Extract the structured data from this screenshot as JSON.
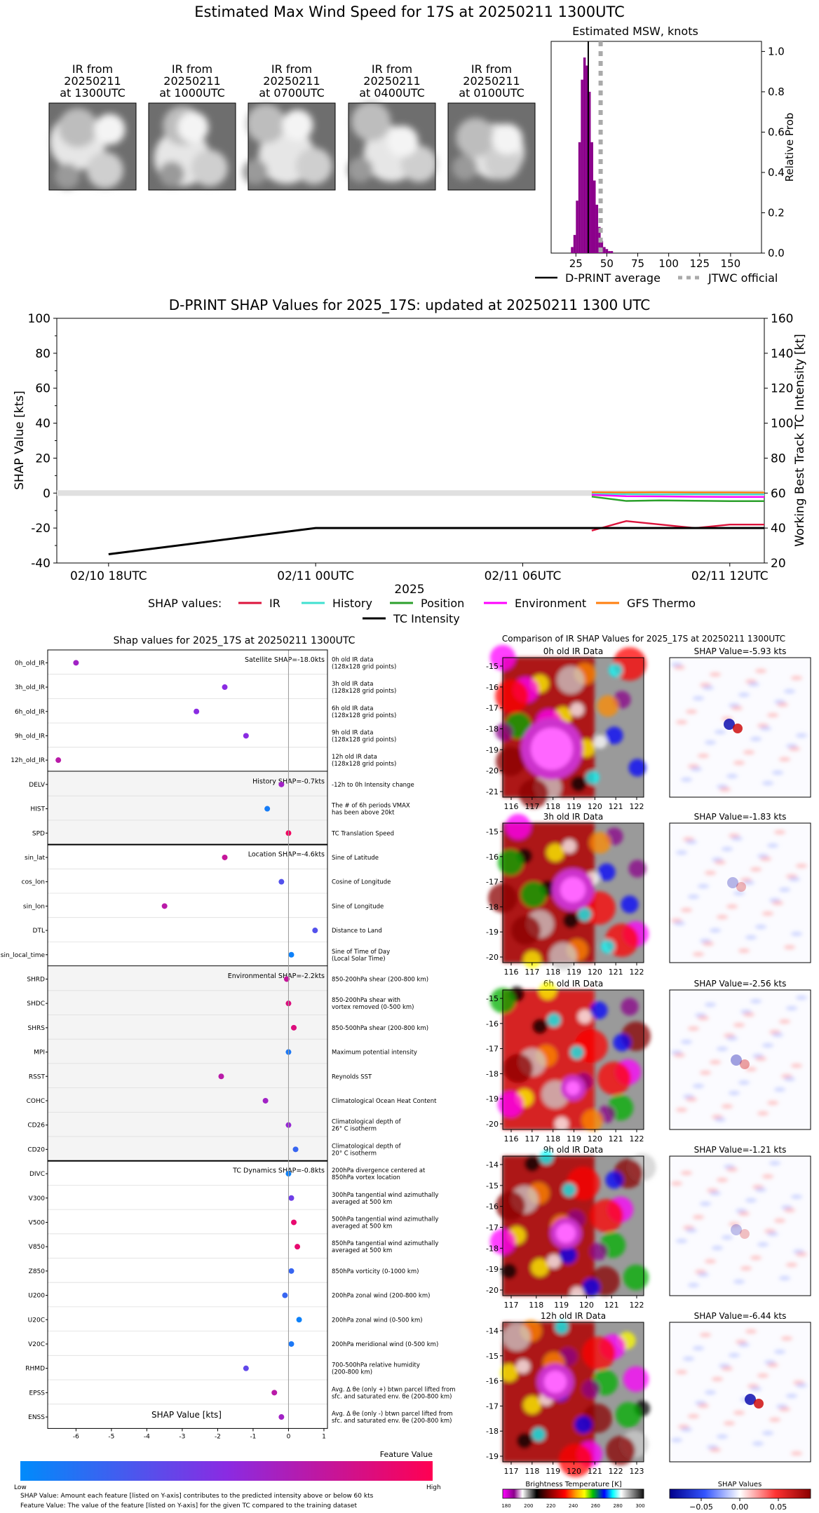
{
  "figure_title": "Estimated Max Wind Speed for 17S at 20250211 1300UTC",
  "ir_thumbs": [
    {
      "l1": "IR from",
      "l2": "20250211",
      "l3": "at 1300UTC"
    },
    {
      "l1": "IR from",
      "l2": "20250211",
      "l3": "at 1000UTC"
    },
    {
      "l1": "IR from",
      "l2": "20250211",
      "l3": "at 0700UTC"
    },
    {
      "l1": "IR from",
      "l2": "20250211",
      "l3": "at 0400UTC"
    },
    {
      "l1": "IR from",
      "l2": "20250211",
      "l3": "at 0100UTC"
    }
  ],
  "colors": {
    "purple": "#8b008b",
    "crimson": "#dc143c",
    "cyan": "#40e0d0",
    "green": "#2ca02c",
    "magenta": "#ff00ff",
    "orange": "#ff7f0e",
    "grey": "#bbbbbb"
  },
  "chart_data": [
    {
      "id": "msw_hist",
      "type": "bar",
      "title": "Estimated MSW, knots",
      "ylabel": "Relative Prob",
      "xlim": [
        5,
        175
      ],
      "ylim": [
        0,
        1.05
      ],
      "xticks": [
        25,
        50,
        75,
        100,
        125,
        150
      ],
      "yticks": [
        0.0,
        0.2,
        0.4,
        0.6,
        0.8,
        1.0
      ],
      "bins": [
        [
          22,
          0.03
        ],
        [
          24,
          0.09
        ],
        [
          26,
          0.26
        ],
        [
          28,
          0.55
        ],
        [
          30,
          0.86
        ],
        [
          32,
          0.97
        ],
        [
          34,
          0.93
        ],
        [
          36,
          0.8
        ],
        [
          38,
          0.55
        ],
        [
          40,
          0.36
        ],
        [
          42,
          0.24
        ],
        [
          44,
          0.13
        ],
        [
          46,
          0.06
        ],
        [
          48,
          0.03
        ],
        [
          50,
          0.02
        ],
        [
          52,
          0.01
        ],
        [
          54,
          0.01
        ]
      ],
      "bin_width": 2,
      "dprint_average": 35,
      "jtwc_official": 45,
      "legend": [
        "D-PRINT average",
        "JTWC official"
      ]
    },
    {
      "id": "shap_time",
      "type": "line",
      "title": "D-PRINT SHAP Values for 2025_17S: updated at 20250211 1300 UTC",
      "ylabel": "SHAP Value [kts]",
      "y2label": "Working Best Track TC Intensity [kt]",
      "xlabel": "2025",
      "ylim": [
        -40,
        100
      ],
      "y2lim": [
        20,
        160
      ],
      "yticks": [
        -40,
        -20,
        0,
        20,
        40,
        60,
        80,
        100
      ],
      "y2ticks": [
        20,
        40,
        60,
        80,
        100,
        120,
        140,
        160
      ],
      "xticks": [
        {
          "h": -6,
          "label": "02/10 18UTC"
        },
        {
          "h": 0,
          "label": "02/11 00UTC"
        },
        {
          "h": 6,
          "label": "02/11 06UTC"
        },
        {
          "h": 12,
          "label": "02/11 12UTC"
        }
      ],
      "xlim_hours": [
        -7.5,
        13
      ],
      "legend_prefix": "SHAP values:",
      "series": [
        {
          "name": "IR",
          "color": "#dc143c",
          "hours": [
            8,
            9,
            10,
            11,
            12,
            13
          ],
          "values": [
            -21.5,
            -16,
            -18,
            -20,
            -18,
            -18
          ]
        },
        {
          "name": "History",
          "color": "#40e0d0",
          "hours": [
            8,
            9,
            10,
            11,
            12,
            13
          ],
          "values": [
            -0.5,
            -0.6,
            -0.7,
            -0.6,
            -0.7,
            -0.7
          ]
        },
        {
          "name": "Position",
          "color": "#2ca02c",
          "hours": [
            8,
            9,
            10,
            11,
            12,
            13
          ],
          "values": [
            -2,
            -4.5,
            -4.2,
            -4.4,
            -4.6,
            -4.6
          ]
        },
        {
          "name": "Environment",
          "color": "#ff00ff",
          "hours": [
            8,
            9,
            10,
            11,
            12,
            13
          ],
          "values": [
            -1,
            -1.8,
            -1.9,
            -2.1,
            -2.2,
            -2.2
          ]
        },
        {
          "name": "GFS Thermo",
          "color": "#ff7f0e",
          "hours": [
            8,
            9,
            10,
            11,
            12,
            13
          ],
          "values": [
            0.5,
            0.4,
            0.5,
            0.4,
            0.4,
            0.3
          ]
        },
        {
          "name": "TC Intensity",
          "color": "#000000",
          "axis": "y2",
          "hours": [
            -6,
            0,
            6,
            13
          ],
          "values": [
            25,
            40,
            40,
            40
          ]
        }
      ]
    },
    {
      "id": "shap_features",
      "type": "scatter",
      "title": "Shap values for 2025_17S at 20250211 1300UTC",
      "xlabel": "SHAP Value [kts]",
      "xlim": [
        -6.8,
        1.1
      ],
      "xticks": [
        -6,
        -5,
        -4,
        -3,
        -2,
        -1,
        0,
        1
      ],
      "groups": [
        {
          "name": "Satellite SHAP=-18.0kts",
          "shade": false,
          "features": [
            {
              "f": "0h_old_IR",
              "shap": -6.0,
              "v": 0.6,
              "desc": [
                "0h old IR data",
                "(128x128 grid points)"
              ]
            },
            {
              "f": "3h_old_IR",
              "shap": -1.8,
              "v": 0.5,
              "desc": [
                "3h old IR data",
                "(128x128 grid points)"
              ]
            },
            {
              "f": "6h_old_IR",
              "shap": -2.6,
              "v": 0.5,
              "desc": [
                "6h old IR data",
                "(128x128 grid points)"
              ]
            },
            {
              "f": "9h_old_IR",
              "shap": -1.2,
              "v": 0.5,
              "desc": [
                "9h old IR data",
                "(128x128 grid points)"
              ]
            },
            {
              "f": "12h_old_IR",
              "shap": -6.5,
              "v": 0.7,
              "desc": [
                "12h old IR data",
                "(128x128 grid points)"
              ]
            }
          ]
        },
        {
          "name": "History SHAP=-0.7kts",
          "shade": true,
          "features": [
            {
              "f": "DELV",
              "shap": -0.2,
              "v": 0.6,
              "desc": [
                "-12h to 0h Intensity change"
              ]
            },
            {
              "f": "HIST",
              "shap": -0.6,
              "v": 0.08,
              "desc": [
                "The # of 6h periods VMAX",
                "has been above 20kt"
              ]
            },
            {
              "f": "SPD",
              "shap": 0.0,
              "v": 0.95,
              "desc": [
                "TC Translation Speed"
              ]
            }
          ]
        },
        {
          "name": "Location SHAP=-4.6kts",
          "shade": false,
          "features": [
            {
              "f": "sin_lat",
              "shap": -1.8,
              "v": 0.75,
              "desc": [
                "Sine of Latitude"
              ]
            },
            {
              "f": "cos_lon",
              "shap": -0.2,
              "v": 0.3,
              "desc": [
                "Cosine of Longitude"
              ]
            },
            {
              "f": "sin_lon",
              "shap": -3.5,
              "v": 0.7,
              "desc": [
                "Sine of Longitude"
              ]
            },
            {
              "f": "DTL",
              "shap": 0.75,
              "v": 0.3,
              "desc": [
                "Distance to Land"
              ]
            },
            {
              "f": "sin_local_time",
              "shap": 0.08,
              "v": 0.05,
              "desc": [
                "Sine of Time of Day",
                "(Local Solar Time)"
              ]
            }
          ]
        },
        {
          "name": "Environmental SHAP=-2.2kts",
          "shade": true,
          "features": [
            {
              "f": "SHRD",
              "shap": -0.05,
              "v": 0.75,
              "desc": [
                "850-200hPa shear (200-800 km)"
              ]
            },
            {
              "f": "SHDC",
              "shap": 0.0,
              "v": 0.85,
              "desc": [
                "850-200hPa shear with",
                "vortex removed (0-500 km)"
              ]
            },
            {
              "f": "SHRS",
              "shap": 0.15,
              "v": 0.85,
              "desc": [
                "850-500hPa shear (200-800 km)"
              ]
            },
            {
              "f": "MPI",
              "shap": 0.0,
              "v": 0.1,
              "desc": [
                "Maximum potential intensity"
              ]
            },
            {
              "f": "RSST",
              "shap": -1.9,
              "v": 0.7,
              "desc": [
                "Reynolds SST"
              ]
            },
            {
              "f": "COHC",
              "shap": -0.65,
              "v": 0.6,
              "desc": [
                "Climatological Ocean Heat Content"
              ]
            },
            {
              "f": "CD26",
              "shap": 0.0,
              "v": 0.55,
              "desc": [
                "Climatological depth of",
                "26° C isotherm"
              ]
            },
            {
              "f": "CD20",
              "shap": 0.2,
              "v": 0.2,
              "desc": [
                "Climatological depth of",
                "20° C isotherm"
              ]
            }
          ]
        },
        {
          "name": "TC Dynamics SHAP=-0.8kts",
          "shade": false,
          "features": [
            {
              "f": "DIVC",
              "shap": 0.0,
              "v": 0.05,
              "desc": [
                "200hPa divergence centered at",
                "850hPa vortex location"
              ]
            },
            {
              "f": "V300",
              "shap": 0.08,
              "v": 0.4,
              "desc": [
                "300hPa tangential wind azimuthally",
                "averaged at 500 km"
              ]
            },
            {
              "f": "V500",
              "shap": 0.15,
              "v": 0.9,
              "desc": [
                "500hPa tangential wind azimuthally",
                "averaged at 500 km"
              ]
            },
            {
              "f": "V850",
              "shap": 0.25,
              "v": 0.9,
              "desc": [
                "850hPa tangential wind azimuthally",
                "averaged at 500 km"
              ]
            },
            {
              "f": "Z850",
              "shap": 0.08,
              "v": 0.2,
              "desc": [
                "850hPa vorticity (0-1000 km)"
              ]
            },
            {
              "f": "U200",
              "shap": -0.1,
              "v": 0.2,
              "desc": [
                "200hPa zonal wind (200-800 km)"
              ]
            },
            {
              "f": "U20C",
              "shap": 0.3,
              "v": 0.05,
              "desc": [
                "200hPa zonal wind (0-500 km)"
              ]
            },
            {
              "f": "V20C",
              "shap": 0.08,
              "v": 0.1,
              "desc": [
                "200hPa meridional wind (0-500 km)"
              ]
            },
            {
              "f": "RHMD",
              "shap": -1.2,
              "v": 0.35,
              "desc": [
                "700-500hPa relative humidity",
                "(200-800 km)"
              ]
            },
            {
              "f": "EPSS",
              "shap": -0.4,
              "v": 0.7,
              "desc": [
                "Avg. Δ θe (only +) btwn parcel lifted from",
                "sfc. and saturated env. θe (200-800 km)"
              ]
            },
            {
              "f": "ENSS",
              "shap": -0.2,
              "v": 0.6,
              "desc": [
                "Avg. Δ θe (only -) btwn parcel lifted from",
                "sfc. and saturated env. θe (200-800 km)"
              ]
            }
          ]
        }
      ]
    }
  ],
  "feature_colorbar": {
    "title": "Feature Value",
    "low": "Low",
    "high": "High"
  },
  "footnotes": [
    "SHAP Value: Amount each feature [listed on Y-axis] contributes to the predicted intensity above or below 60 kts",
    "Feature Value: The value of the feature [listed on Y-axis] for the given TC compared to the training dataset"
  ],
  "comparison": {
    "title": "Comparison of IR SHAP Values for 2025_17S at 20250211 1300UTC",
    "rows": [
      {
        "ir_title": "0h old IR Data",
        "shap_title": "SHAP Value=-5.93 kts",
        "yticks": [
          "-15",
          "-16",
          "-17",
          "-18",
          "-19",
          "-20",
          "-21"
        ],
        "xticks": [
          "116",
          "117",
          "118",
          "119",
          "120",
          "121",
          "122"
        ]
      },
      {
        "ir_title": "3h old IR Data",
        "shap_title": "SHAP Value=-1.83 kts",
        "yticks": [
          "-15",
          "-16",
          "-17",
          "-18",
          "-19",
          "-20"
        ],
        "xticks": [
          "116",
          "117",
          "118",
          "119",
          "120",
          "121",
          "122"
        ]
      },
      {
        "ir_title": "6h old IR Data",
        "shap_title": "SHAP Value=-2.56 kts",
        "yticks": [
          "-15",
          "-16",
          "-17",
          "-18",
          "-19",
          "-20"
        ],
        "xticks": [
          "116",
          "117",
          "118",
          "119",
          "120",
          "121",
          "122"
        ]
      },
      {
        "ir_title": "9h old IR Data",
        "shap_title": "SHAP Value=-1.21 kts",
        "yticks": [
          "-14",
          "-15",
          "-16",
          "-17",
          "-18",
          "-19",
          "-20"
        ],
        "xticks": [
          "117",
          "118",
          "119",
          "120",
          "121",
          "122"
        ]
      },
      {
        "ir_title": "12h old IR Data",
        "shap_title": "SHAP Value=-6.44 kts",
        "yticks": [
          "-14",
          "-15",
          "-16",
          "-17",
          "-18",
          "-19"
        ],
        "xticks": [
          "117",
          "118",
          "119",
          "120",
          "121",
          "122",
          "123"
        ]
      }
    ],
    "bt_title": "Brightness Temperature [K]",
    "bt_ticks": [
      "180",
      "200",
      "220",
      "240",
      "260",
      "280",
      "300"
    ],
    "shap_cb_title": "SHAP Values",
    "shap_cb_ticks": [
      "−0.05",
      "0.00",
      "0.05"
    ]
  }
}
